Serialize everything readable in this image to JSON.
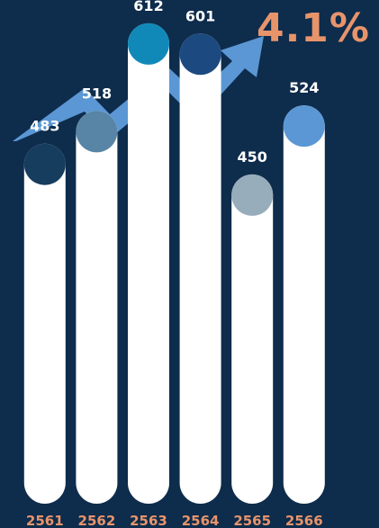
{
  "growth": {
    "value_label": "4.1%",
    "accent_color": "#e8946b",
    "arrow_color": "#5b97d4",
    "icon": "trend-up-arrow-icon"
  },
  "chart_data": {
    "type": "bar",
    "categories": [
      "2561",
      "2562",
      "2563",
      "2564",
      "2565",
      "2566"
    ],
    "values": [
      483,
      518,
      612,
      601,
      450,
      524
    ],
    "data_labels": [
      "483",
      "518",
      "612",
      "601",
      "450",
      "524"
    ],
    "cap_colors": [
      "#163c5e",
      "#5885a5",
      "#1189b8",
      "#1c4a80",
      "#97adbb",
      "#5b97d4"
    ],
    "bar_color": "#ffffff",
    "label_color": "#ffffff",
    "category_color": "#e8946b",
    "background": "#0e2c4c"
  }
}
